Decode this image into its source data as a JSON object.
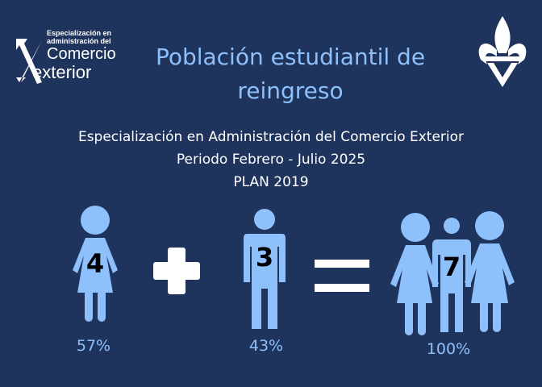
{
  "header": {
    "title": "Población estudiantil de reingreso",
    "logo_left": {
      "line1": "Especialización en",
      "line2": "administración del",
      "line3": "Comercio",
      "line4": "exterior"
    },
    "logo_right": "uv-flame-logo"
  },
  "subtitle": {
    "program": "Especialización en Administración del Comercio Exterior",
    "period": "Periodo Febrero - Julio 2025",
    "plan": "PLAN 2019"
  },
  "equation": {
    "women": {
      "count": "4",
      "percent": "57%",
      "icon": "woman-icon"
    },
    "operator_plus": "plus-icon",
    "men": {
      "count": "3",
      "percent": "43%",
      "icon": "man-icon"
    },
    "operator_equals": "equals-icon",
    "total": {
      "count": "7",
      "percent": "100%",
      "icon": "group-icon"
    }
  },
  "colors": {
    "background": "#1f345c",
    "accent": "#8ec0fc",
    "text": "#ffffff"
  }
}
